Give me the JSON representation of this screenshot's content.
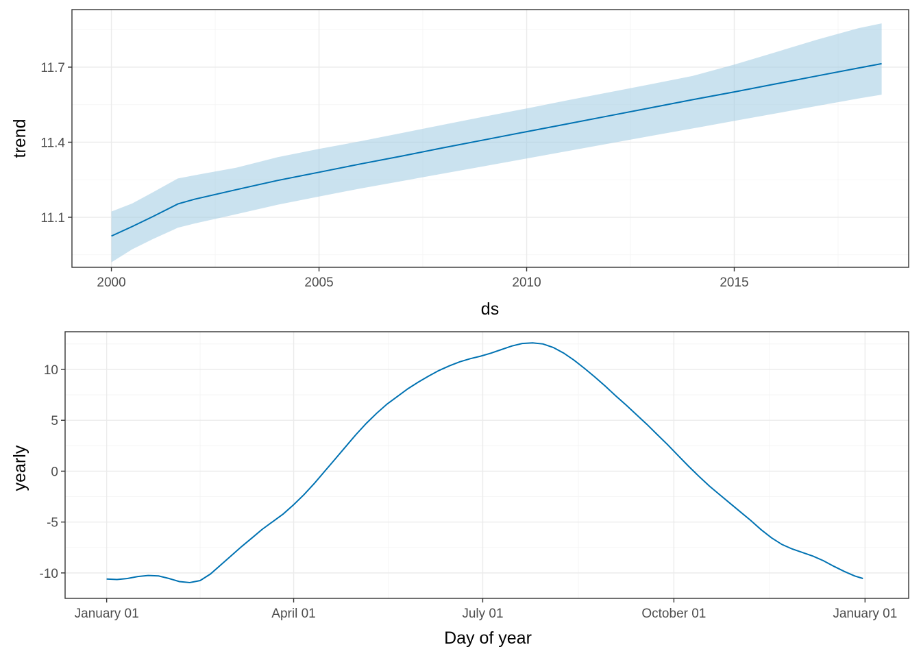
{
  "colors": {
    "line": "#0072B2",
    "band": "#9ecae1",
    "grid": "#ebebeb",
    "border": "#333333"
  },
  "chart_data": [
    {
      "type": "line",
      "title": "",
      "xlabel": "ds",
      "ylabel": "trend",
      "xlim": [
        1999.05,
        2019.2
      ],
      "ylim": [
        10.9,
        11.93
      ],
      "x_ticks": [
        2000,
        2005,
        2010,
        2015
      ],
      "x_tick_labels": [
        "2000",
        "2005",
        "2010",
        "2015"
      ],
      "y_ticks": [
        11.1,
        11.4,
        11.7
      ],
      "y_tick_labels": [
        "11.1",
        "11.4",
        "11.7"
      ],
      "grid": true,
      "series": [
        {
          "x": [
            2000.0,
            2000.5,
            2001.0,
            2001.6,
            2002.0,
            2003.0,
            2004.0,
            2005.0,
            2006.0,
            2007.0,
            2008.0,
            2009.0,
            2010.0,
            2011.0,
            2012.0,
            2013.0,
            2014.0,
            2015.0,
            2016.0,
            2017.0,
            2018.0,
            2018.55
          ],
          "y": [
            11.025,
            11.063,
            11.103,
            11.153,
            11.172,
            11.21,
            11.247,
            11.28,
            11.313,
            11.345,
            11.378,
            11.41,
            11.442,
            11.474,
            11.506,
            11.538,
            11.57,
            11.601,
            11.633,
            11.665,
            11.697,
            11.714
          ],
          "lower": [
            10.92,
            10.972,
            11.013,
            11.058,
            11.075,
            11.112,
            11.15,
            11.183,
            11.215,
            11.245,
            11.275,
            11.305,
            11.335,
            11.365,
            11.395,
            11.425,
            11.455,
            11.485,
            11.515,
            11.545,
            11.575,
            11.59
          ],
          "upper": [
            11.123,
            11.155,
            11.2,
            11.255,
            11.268,
            11.298,
            11.34,
            11.373,
            11.404,
            11.437,
            11.47,
            11.503,
            11.535,
            11.568,
            11.6,
            11.632,
            11.665,
            11.71,
            11.76,
            11.81,
            11.856,
            11.875
          ]
        }
      ]
    },
    {
      "type": "line",
      "title": "",
      "xlabel": "Day of year",
      "ylabel": "yearly",
      "xlim": [
        -20,
        386
      ],
      "ylim": [
        -12.5,
        13.7
      ],
      "x_ticks": [
        0,
        90,
        181,
        273,
        365
      ],
      "x_tick_labels": [
        "January 01",
        "April 01",
        "July 01",
        "October 01",
        "January 01"
      ],
      "y_ticks": [
        -10,
        -5,
        0,
        5,
        10
      ],
      "y_tick_labels": [
        "-10",
        "-5",
        "0",
        "5",
        "10"
      ],
      "grid": true,
      "series": [
        {
          "x": [
            0,
            5,
            10,
            15,
            20,
            25,
            30,
            35,
            40,
            45,
            50,
            55,
            60,
            65,
            70,
            75,
            80,
            85,
            90,
            95,
            100,
            105,
            110,
            115,
            120,
            125,
            130,
            135,
            140,
            145,
            150,
            155,
            160,
            165,
            170,
            175,
            180,
            185,
            190,
            195,
            200,
            205,
            210,
            215,
            220,
            225,
            230,
            235,
            240,
            245,
            250,
            255,
            260,
            265,
            270,
            275,
            280,
            285,
            290,
            295,
            300,
            305,
            310,
            315,
            320,
            325,
            330,
            335,
            340,
            345,
            350,
            355,
            360,
            364
          ],
          "y": [
            -10.6,
            -10.65,
            -10.55,
            -10.35,
            -10.25,
            -10.3,
            -10.55,
            -10.85,
            -10.95,
            -10.75,
            -10.1,
            -9.2,
            -8.3,
            -7.4,
            -6.55,
            -5.7,
            -4.95,
            -4.2,
            -3.3,
            -2.3,
            -1.2,
            0.0,
            1.2,
            2.4,
            3.6,
            4.7,
            5.7,
            6.6,
            7.35,
            8.1,
            8.75,
            9.35,
            9.9,
            10.35,
            10.75,
            11.05,
            11.3,
            11.6,
            11.95,
            12.3,
            12.55,
            12.6,
            12.5,
            12.15,
            11.6,
            10.9,
            10.1,
            9.25,
            8.35,
            7.4,
            6.5,
            5.55,
            4.6,
            3.6,
            2.6,
            1.55,
            0.5,
            -0.5,
            -1.45,
            -2.3,
            -3.15,
            -4.0,
            -4.85,
            -5.75,
            -6.55,
            -7.2,
            -7.65,
            -8.0,
            -8.35,
            -8.8,
            -9.35,
            -9.85,
            -10.3,
            -10.55
          ]
        }
      ]
    }
  ]
}
